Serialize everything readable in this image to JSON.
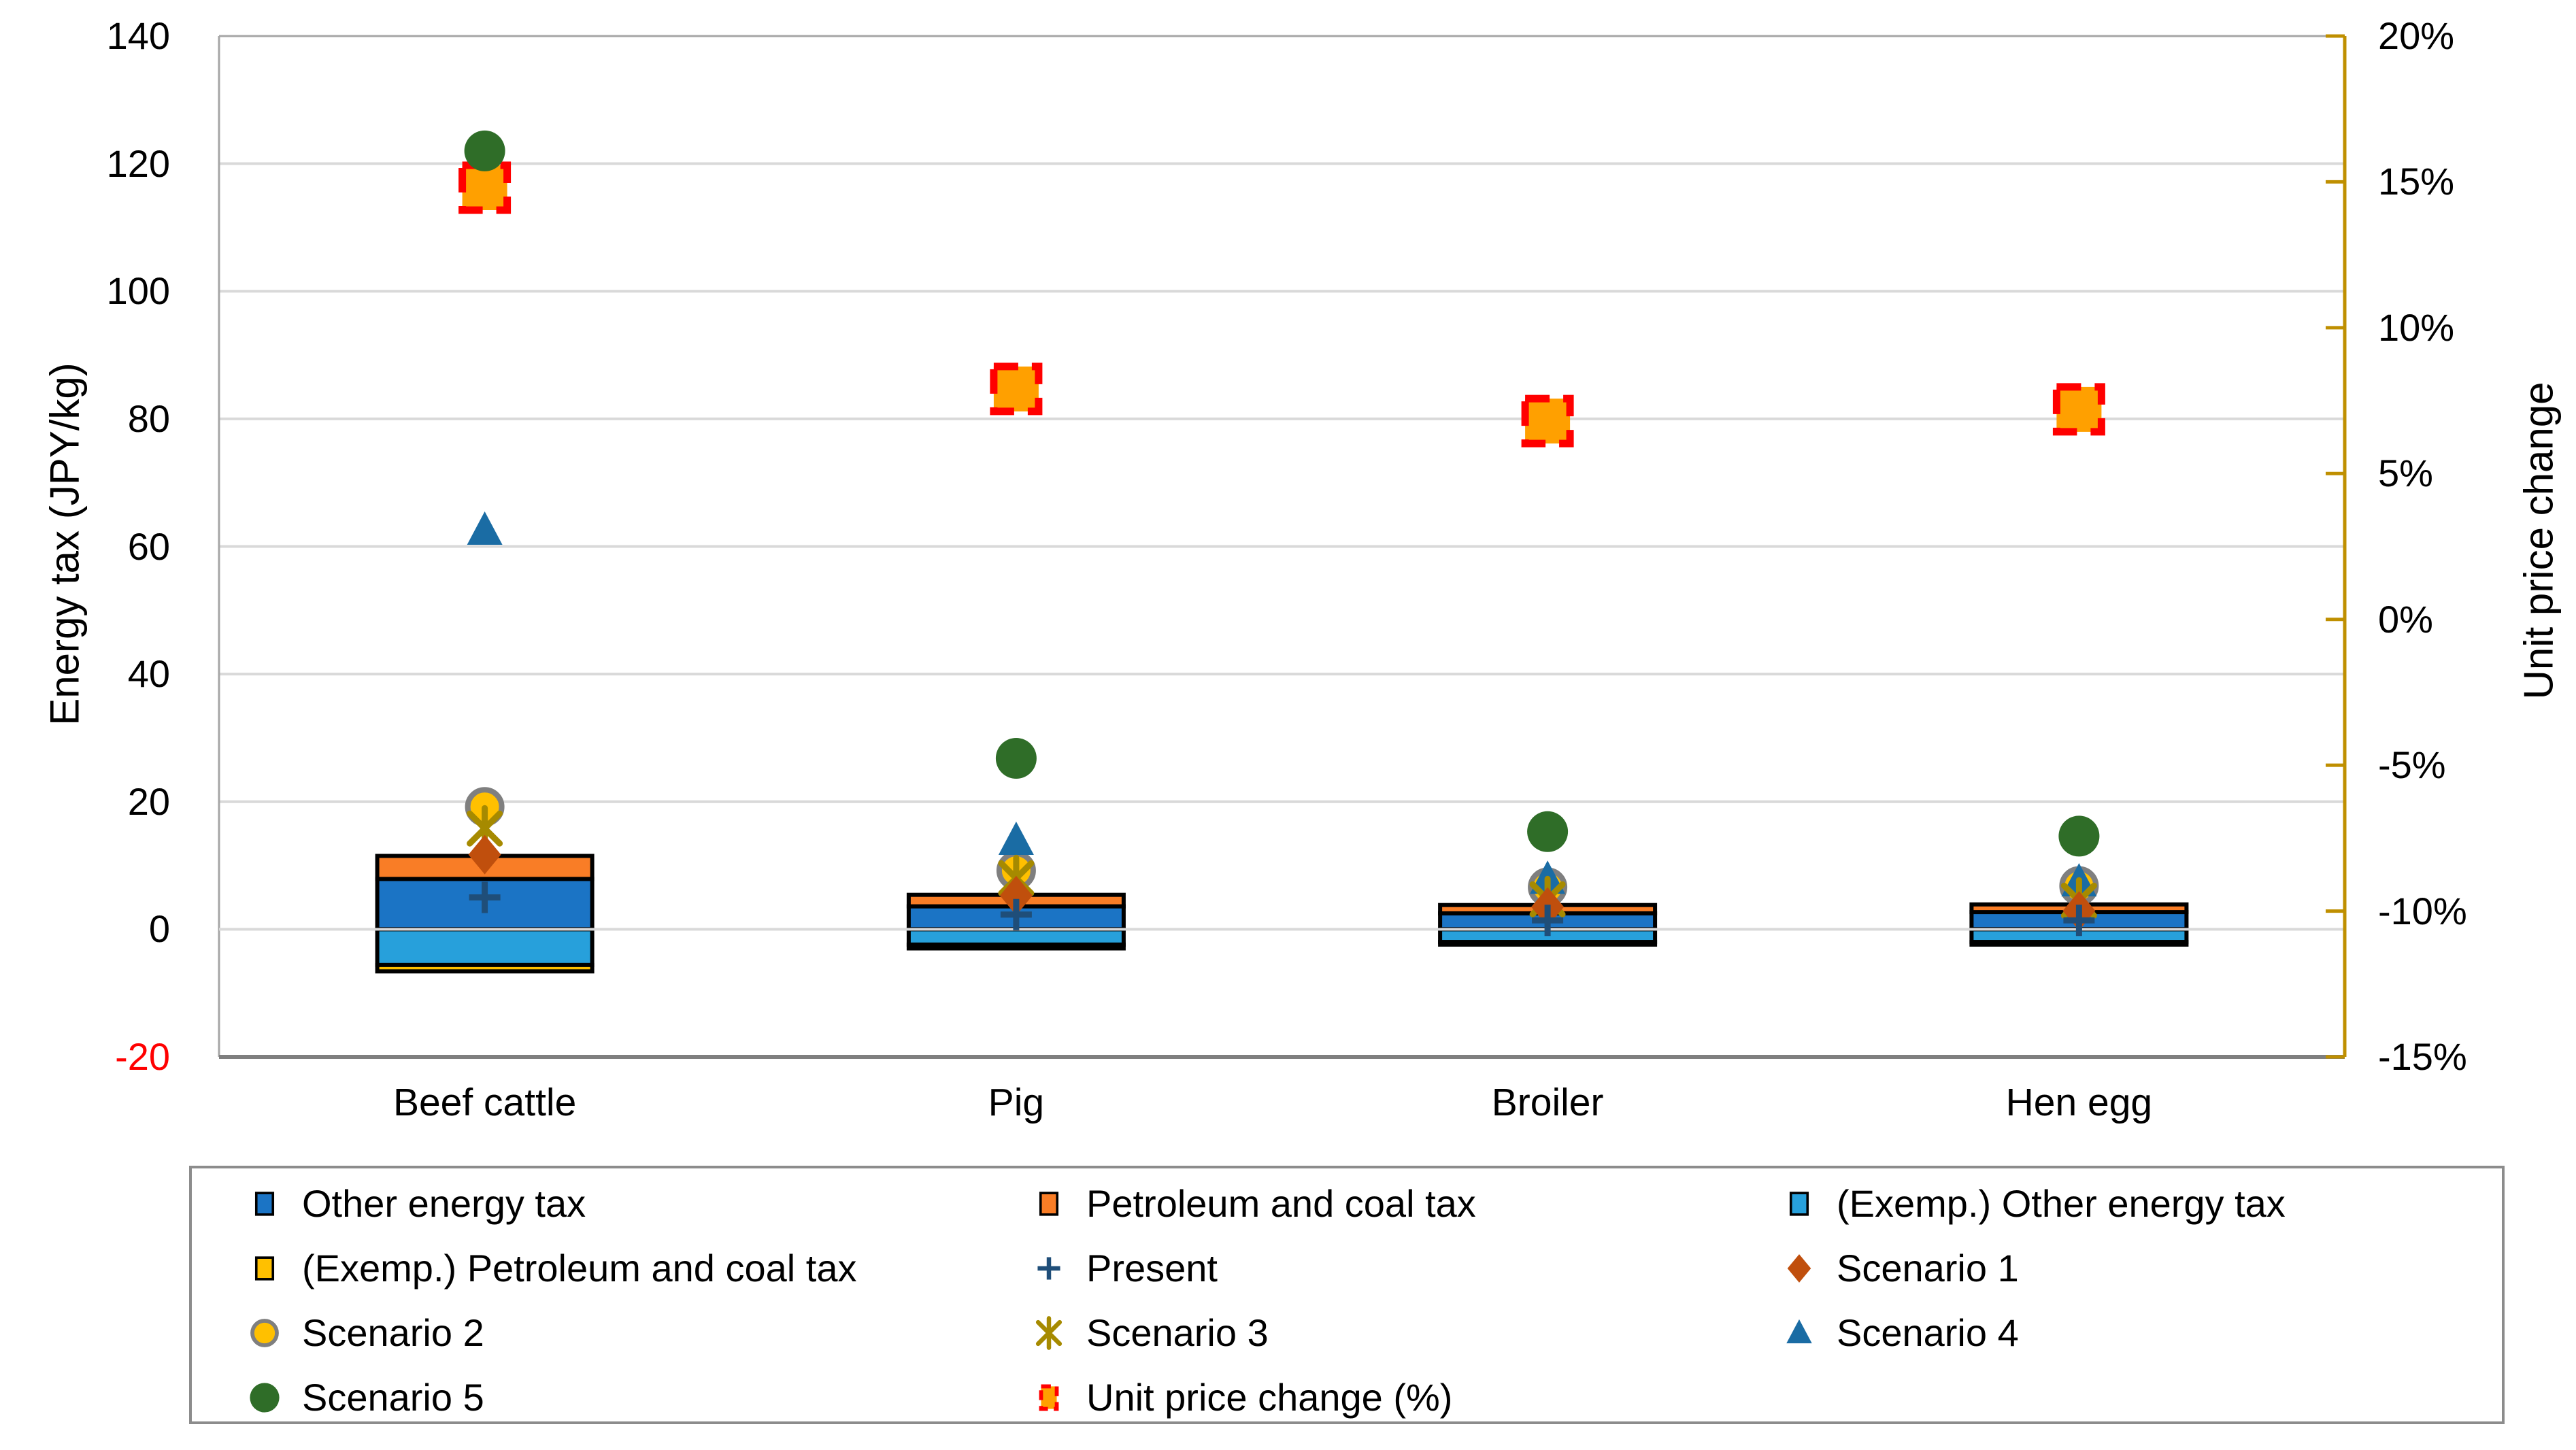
{
  "chart_data": {
    "type": "bar+scatter",
    "categories": [
      "Beef cattle",
      "Pig",
      "Broiler",
      "Hen egg"
    ],
    "left_axis": {
      "title": "Energy tax (JPY/kg)",
      "min": -20,
      "max": 140,
      "tick_values": [
        140,
        120,
        100,
        80,
        60,
        40,
        20,
        0,
        -20
      ],
      "tick_labels": [
        "140",
        "120",
        "100",
        "80",
        "60",
        "40",
        "20",
        "0",
        "-20"
      ],
      "negative_tick_color": "#FF0000",
      "tick_color": "#000000"
    },
    "right_axis": {
      "title": "Unit price change",
      "min_pct": -15,
      "max_pct": 20,
      "tick_values": [
        20,
        15,
        10,
        5,
        0,
        -5,
        -10,
        -15
      ],
      "tick_labels": [
        "20%",
        "15%",
        "10%",
        "5%",
        "0%",
        "-5%",
        "-10%",
        "-15%"
      ],
      "axis_color": "#BF8F00",
      "tick_label_color": "#000000"
    },
    "gridlines": {
      "color": "#D9D9D9",
      "at": [
        120,
        100,
        80,
        60,
        40,
        20,
        0
      ]
    },
    "plot_border_color": "#A6A6A6",
    "bottom_axis_color": "#7F7F7F",
    "bar_series": [
      {
        "name": "Other energy tax",
        "color": "#1B74C5",
        "values": [
          7.9,
          3.6,
          2.5,
          2.7
        ]
      },
      {
        "name": "Petroleum and coal tax",
        "color": "#F97D26",
        "values": [
          3.6,
          1.8,
          1.3,
          1.2
        ]
      },
      {
        "name": "(Exemp.) Other energy tax",
        "color": "#27A0DB",
        "values": [
          -5.6,
          -2.4,
          -2.0,
          -2.0
        ]
      },
      {
        "name": "(Exemp.) Petroleum and coal tax",
        "color": "#FFC000",
        "values": [
          -1.0,
          -0.6,
          -0.4,
          -0.4
        ]
      }
    ],
    "scatter_series": [
      {
        "name": "Present",
        "marker": "plus",
        "color": "#1F4E79",
        "values": [
          5.0,
          2.3,
          1.4,
          1.4
        ]
      },
      {
        "name": "Scenario 1",
        "marker": "diamond",
        "color": "#C04F0D",
        "values": [
          11.7,
          5.3,
          3.5,
          2.9
        ]
      },
      {
        "name": "Scenario 2",
        "marker": "circle-outlined",
        "color": "#FFC000",
        "outline": "#7F7F7F",
        "values": [
          19.2,
          9.2,
          6.6,
          6.8
        ]
      },
      {
        "name": "Scenario 3",
        "marker": "x-star",
        "color": "#A68A00",
        "values": [
          15.8,
          8.0,
          4.7,
          4.5
        ]
      },
      {
        "name": "Scenario 4",
        "marker": "triangle",
        "color": "#1A6CA4",
        "values": [
          62.5,
          13.9,
          7.8,
          7.4
        ]
      },
      {
        "name": "Scenario 5",
        "marker": "circle",
        "color": "#2F6D28",
        "values": [
          122,
          26.8,
          15.3,
          14.6
        ]
      }
    ],
    "unit_price_series": {
      "name": "Unit price change (%)",
      "marker": "dashed-square",
      "fill": "#FFA000",
      "border": "#FF0000",
      "values_pct": [
        14.8,
        7.9,
        6.8,
        7.2
      ]
    }
  },
  "legend": {
    "items": [
      {
        "label": "Other energy tax",
        "marker": "rect",
        "color": "#1B74C5"
      },
      {
        "label": "Petroleum and coal tax",
        "marker": "rect",
        "color": "#F97D26"
      },
      {
        "label": "(Exemp.) Other energy tax",
        "marker": "rect",
        "color": "#27A0DB"
      },
      {
        "label": "(Exemp.) Petroleum and coal tax",
        "marker": "rect",
        "color": "#FFC000"
      },
      {
        "label": "Present",
        "marker": "plus",
        "color": "#1F4E79"
      },
      {
        "label": "Scenario 1",
        "marker": "diamond",
        "color": "#C04F0D"
      },
      {
        "label": "Scenario 2",
        "marker": "circle-outlined",
        "color": "#FFC000",
        "outline": "#7F7F7F"
      },
      {
        "label": "Scenario 3",
        "marker": "x-star",
        "color": "#A68A00"
      },
      {
        "label": "Scenario 4",
        "marker": "triangle",
        "color": "#1A6CA4"
      },
      {
        "label": "Scenario 5",
        "marker": "circle",
        "color": "#2F6D28"
      },
      {
        "label": "Unit price change (%)",
        "marker": "dashed-rect",
        "color": "#FFA000",
        "outline": "#FF0000"
      }
    ]
  }
}
